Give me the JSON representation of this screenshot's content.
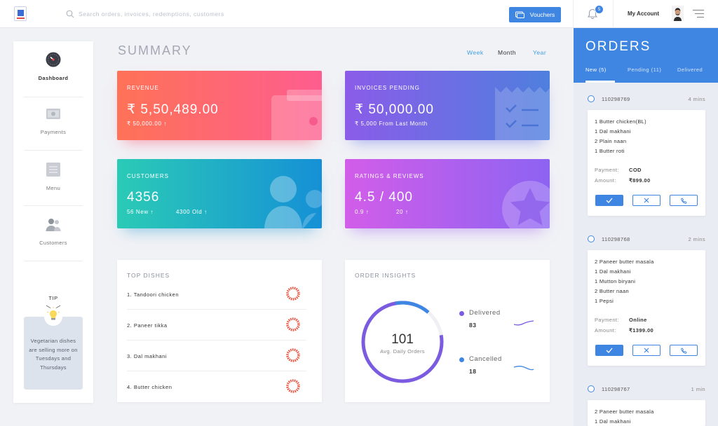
{
  "search": {
    "placeholder": "Search orders, invoices, redemptions, customers"
  },
  "topbar": {
    "vouchers_label": "Vouchers",
    "notification_count": "5",
    "account_label": "My Account"
  },
  "sidebar": {
    "items": [
      {
        "label": "Dashboard",
        "icon": "gauge-icon",
        "active": true
      },
      {
        "label": "Payments",
        "icon": "cash-icon"
      },
      {
        "label": "Menu",
        "icon": "menu-list-icon"
      },
      {
        "label": "Customers",
        "icon": "customers-icon"
      }
    ],
    "tip_title": "TIP",
    "tip_text": "Vegetarian dishes are selling more on Tuesdays and Thursdays"
  },
  "main": {
    "title": "SUMMARY",
    "periods": [
      "Week",
      "Month",
      "Year"
    ],
    "active_period": "Month"
  },
  "cards": {
    "revenue": {
      "title": "REVENUE",
      "value": "₹ 5,50,489.00",
      "sub": "₹ 50,000.00 ↑"
    },
    "invoices": {
      "title": "INVOICES PENDING",
      "value": "₹ 50,000.00",
      "sub": "₹ 5,000 From Last Month"
    },
    "customers": {
      "title": "CUSTOMERS",
      "value": "4356",
      "sub_new": "56 New ↑",
      "sub_old": "4300 Old ↑"
    },
    "ratings": {
      "title": "RATINGS & REVIEWS",
      "value": "4.5 / 400",
      "sub_a": "0.9 ↑",
      "sub_b": "20 ↑"
    }
  },
  "top_dishes": {
    "title": "TOP DISHES",
    "items": [
      "1. Tandoori chicken",
      "2. Paneer tikka",
      "3. Dal makhani",
      "4. Butter chicken"
    ]
  },
  "order_insights": {
    "title": "ORDER INSIGHTS",
    "center_value": "101",
    "center_label": "Avg. Daily Orders",
    "delivered_label": "Delivered",
    "delivered_value": "83",
    "cancelled_label": "Cancelled",
    "cancelled_value": "18",
    "colors": {
      "delivered": "#7b5ce0",
      "cancelled": "#3f86e2"
    }
  },
  "orders": {
    "title": "ORDERS",
    "tabs": [
      "New (5)",
      "Pending (11)",
      "Delivered"
    ],
    "payment_key": "Payment:",
    "amount_key": "Amount:",
    "list": [
      {
        "id": "110298769",
        "time": "4 mins",
        "items": [
          "1 Butter chicken(BL)",
          "1 Dal makhani",
          "2 Plain naan",
          "1 Butter roti"
        ],
        "payment": "COD",
        "amount": "₹899.00"
      },
      {
        "id": "110298768",
        "time": "2 mins",
        "items": [
          "2 Paneer butter masala",
          "1 Dal makhani",
          "1 Mutton biryani",
          "2 Butter naan",
          "1 Pepsi"
        ],
        "payment": "Online",
        "amount": "₹1399.00"
      },
      {
        "id": "110298767",
        "time": "1 min",
        "items": [
          "2 Paneer butter masala",
          "1 Dal makhani"
        ]
      }
    ]
  },
  "colors": {
    "accent": "#3f86e2",
    "background": "#f1f2f6"
  }
}
